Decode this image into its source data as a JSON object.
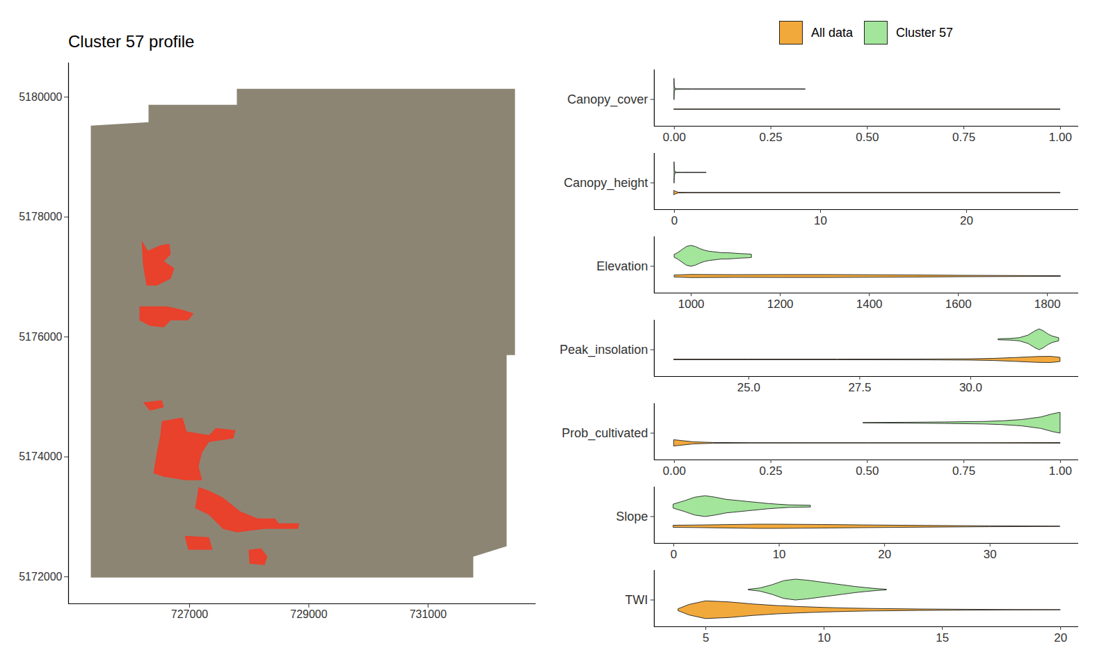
{
  "chart_data": [
    {
      "type": "map",
      "title": "Cluster 57 profile",
      "xlim": [
        724970,
        732810
      ],
      "ylim": [
        5171550,
        5180570
      ],
      "xticks": [
        727000,
        729000,
        731000
      ],
      "yticks": [
        5172000,
        5174000,
        5176000,
        5178000,
        5180000
      ],
      "color": "#e8412c",
      "extent": {
        "x": [
          725344,
          726312,
          726312,
          727793,
          727793,
          732458,
          732458,
          732318,
          732318,
          731758,
          731758,
          725344
        ],
        "y": [
          5179525,
          5179583,
          5179872,
          5179872,
          5180139,
          5180139,
          5175699,
          5175699,
          5172510,
          5172336,
          5171988,
          5171988
        ]
      },
      "regions": [
        {
          "x": [
            726195,
            726300,
            726510,
            726662,
            726685,
            726569,
            726743,
            726685,
            726452,
            726277,
            726219
          ],
          "y": [
            5177612,
            5177438,
            5177530,
            5177554,
            5177380,
            5177264,
            5177148,
            5176974,
            5176858,
            5176858,
            5177206
          ]
        },
        {
          "x": [
            726160,
            726627,
            726883,
            727070,
            726977,
            726685,
            726569,
            726335,
            726160
          ],
          "y": [
            5176510,
            5176510,
            5176452,
            5176394,
            5176278,
            5176278,
            5176162,
            5176186,
            5176278
          ]
        },
        {
          "x": [
            726219,
            726534,
            726569,
            726335
          ],
          "y": [
            5174910,
            5174945,
            5174829,
            5174771
          ]
        },
        {
          "x": [
            726534,
            726883,
            726953,
            727326,
            727443,
            727770,
            727735,
            727326,
            727210,
            727152,
            727210,
            726918,
            726569,
            726394,
            726452,
            726510
          ],
          "y": [
            5174597,
            5174655,
            5174423,
            5174365,
            5174481,
            5174446,
            5174307,
            5174249,
            5174075,
            5173843,
            5173611,
            5173611,
            5173670,
            5173728,
            5174075,
            5174365
          ]
        },
        {
          "x": [
            727152,
            727326,
            727560,
            727851,
            728143,
            728434,
            728492,
            728842,
            728819,
            728259,
            727793,
            727560,
            727326,
            727093
          ],
          "y": [
            5173496,
            5173438,
            5173322,
            5173090,
            5172974,
            5172974,
            5172893,
            5172893,
            5172800,
            5172800,
            5172742,
            5172800,
            5173032,
            5173148
          ]
        },
        {
          "x": [
            726918,
            727326,
            727385,
            726977
          ],
          "y": [
            5172684,
            5172661,
            5172452,
            5172452
          ]
        },
        {
          "x": [
            727991,
            728201,
            728306,
            728259,
            728003
          ],
          "y": [
            5172452,
            5172476,
            5172336,
            5172197,
            5172220
          ]
        }
      ]
    },
    {
      "type": "violin",
      "legend": "top",
      "series": [
        {
          "name": "All data",
          "color": "#f2a93b"
        },
        {
          "name": "Cluster 57",
          "color": "#a3e59b"
        }
      ],
      "panels": [
        {
          "label": "Canopy_cover",
          "xlim": [
            -0.052,
            1.047
          ],
          "xticks": [
            {
              "value": 0,
              "label": "0.00"
            },
            {
              "value": 0.25,
              "label": "0.25"
            },
            {
              "value": 0.5,
              "label": "0.50"
            },
            {
              "value": 0.75,
              "label": "0.75"
            },
            {
              "value": 1,
              "label": "1.00"
            }
          ],
          "groups": [
            {
              "x": [
                0,
                1
              ],
              "density": [
                0.02,
                0.02
              ]
            },
            {
              "x": [
                0,
                0.0008,
                0.003,
                0.05,
                0.34
              ],
              "density": [
                1.0,
                0.3,
                0.02,
                0.01,
                0.01
              ]
            }
          ]
        },
        {
          "label": "Canopy_height",
          "xlim": [
            -1.38,
            27.67
          ],
          "xticks": [
            0,
            10,
            20
          ],
          "groups": [
            {
              "x": [
                0,
                0.1,
                0.3,
                1,
                26.43
              ],
              "density": [
                0.2,
                0.12,
                0.03,
                0.02,
                0.02
              ]
            },
            {
              "x": [
                0,
                0.02,
                0.08,
                0.5,
                2.2
              ],
              "density": [
                1.0,
                0.3,
                0.02,
                0.01,
                0.01
              ]
            }
          ]
        },
        {
          "label": "Elevation",
          "xlim": [
            917,
            1870
          ],
          "xticks": [
            1000,
            1200,
            1400,
            1600,
            1800
          ],
          "groups": [
            {
              "x": [
                963,
                1000,
                1100,
                1200,
                1300,
                1400,
                1500,
                1600,
                1700,
                1830
              ],
              "density": [
                0.1,
                0.15,
                0.13,
                0.14,
                0.14,
                0.12,
                0.1,
                0.07,
                0.05,
                0.03
              ]
            },
            {
              "x": [
                963,
                970,
                980,
                990,
                1000,
                1010,
                1020,
                1030,
                1040,
                1050,
                1060,
                1070,
                1080,
                1090,
                1100,
                1110,
                1120,
                1130,
                1136
              ],
              "density": [
                0.15,
                0.3,
                0.6,
                0.9,
                1.0,
                0.9,
                0.7,
                0.55,
                0.45,
                0.4,
                0.35,
                0.3,
                0.3,
                0.28,
                0.25,
                0.22,
                0.2,
                0.18,
                0.15
              ]
            }
          ]
        },
        {
          "label": "Peak_insolation",
          "xlim": [
            22.87,
            32.43
          ],
          "xticks": [
            {
              "value": 25,
              "label": "25.0"
            },
            {
              "value": 27.5,
              "label": "27.5"
            },
            {
              "value": 30,
              "label": "30.0"
            }
          ],
          "groups": [
            {
              "x": [
                23.32,
                25,
                27,
                29,
                30,
                30.5,
                31,
                31.5,
                31.8,
                32.02
              ],
              "density": [
                0.03,
                0.03,
                0.03,
                0.04,
                0.06,
                0.1,
                0.18,
                0.28,
                0.3,
                0.2
              ]
            },
            {
              "x": [
                30.63,
                30.9,
                31.1,
                31.3,
                31.45,
                31.55,
                31.65,
                31.75,
                31.85,
                31.99
              ],
              "density": [
                0.05,
                0.08,
                0.15,
                0.4,
                0.8,
                1.0,
                0.8,
                0.5,
                0.3,
                0.15
              ]
            }
          ]
        },
        {
          "label": "Prob_cultivated",
          "xlim": [
            -0.052,
            1.047
          ],
          "xticks": [
            {
              "value": 0,
              "label": "0.00"
            },
            {
              "value": 0.25,
              "label": "0.25"
            },
            {
              "value": 0.5,
              "label": "0.50"
            },
            {
              "value": 0.75,
              "label": "0.75"
            },
            {
              "value": 1,
              "label": "1.00"
            }
          ],
          "groups": [
            {
              "x": [
                0,
                0.02,
                0.05,
                0.1,
                0.2,
                0.5,
                0.8,
                1.0
              ],
              "density": [
                0.3,
                0.22,
                0.1,
                0.04,
                0.02,
                0.015,
                0.015,
                0.03
              ]
            },
            {
              "x": [
                0.49,
                0.6,
                0.7,
                0.8,
                0.85,
                0.9,
                0.95,
                0.98,
                1.0
              ],
              "density": [
                0.02,
                0.04,
                0.07,
                0.12,
                0.18,
                0.3,
                0.55,
                0.85,
                1.0
              ]
            }
          ]
        },
        {
          "label": "Slope",
          "xlim": [
            -1.85,
            38.4
          ],
          "xticks": [
            0,
            10,
            20,
            30
          ],
          "groups": [
            {
              "x": [
                0,
                2,
                5,
                8,
                10,
                14,
                18,
                24,
                30,
                36.65
              ],
              "density": [
                0.1,
                0.12,
                0.16,
                0.2,
                0.2,
                0.17,
                0.13,
                0.08,
                0.04,
                0.02
              ]
            },
            {
              "x": [
                0,
                1,
                2,
                3,
                4,
                5,
                6,
                7,
                8,
                9,
                10,
                11,
                12,
                13
              ],
              "density": [
                0.2,
                0.5,
                0.85,
                1.0,
                0.85,
                0.65,
                0.55,
                0.45,
                0.35,
                0.25,
                0.18,
                0.12,
                0.1,
                0.08
              ]
            }
          ]
        },
        {
          "label": "TWI",
          "xlim": [
            2.82,
            20.76
          ],
          "xticks": [
            5,
            10,
            15,
            20
          ],
          "groups": [
            {
              "x": [
                3.85,
                4.3,
                5,
                6,
                7,
                8,
                9,
                10,
                11,
                12,
                14,
                16,
                18,
                20
              ],
              "density": [
                0.1,
                0.5,
                0.85,
                0.75,
                0.55,
                0.4,
                0.3,
                0.22,
                0.16,
                0.12,
                0.07,
                0.04,
                0.02,
                0.01
              ]
            },
            {
              "x": [
                6.82,
                7.3,
                7.8,
                8.3,
                8.8,
                9.3,
                9.8,
                10.3,
                10.8,
                11.3,
                11.8,
                12.3,
                12.65
              ],
              "density": [
                0.03,
                0.15,
                0.45,
                0.85,
                1.0,
                0.9,
                0.75,
                0.6,
                0.45,
                0.3,
                0.18,
                0.08,
                0.03
              ]
            }
          ]
        }
      ]
    }
  ]
}
